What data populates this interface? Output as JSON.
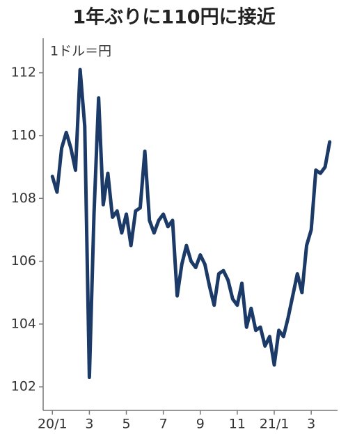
{
  "chart_data": {
    "type": "line",
    "title": "1年ぶりに110円に接近",
    "unit_label": "1ドル＝円",
    "series": [
      {
        "color": "#1c3a68",
        "values": [
          108.7,
          108.2,
          109.6,
          110.1,
          109.6,
          108.9,
          112.1,
          110.3,
          102.3,
          107.5,
          111.2,
          107.8,
          108.8,
          107.4,
          107.6,
          106.9,
          107.5,
          106.5,
          107.6,
          107.7,
          109.5,
          107.3,
          106.9,
          107.3,
          107.5,
          107.1,
          107.3,
          104.9,
          105.9,
          106.5,
          106.0,
          105.8,
          106.2,
          105.9,
          105.2,
          104.6,
          105.6,
          105.7,
          105.4,
          104.8,
          104.6,
          105.3,
          103.9,
          104.5,
          103.8,
          103.9,
          103.3,
          103.6,
          102.7,
          103.8,
          103.6,
          104.2,
          104.9,
          105.6,
          105.0,
          106.5,
          107.0,
          108.9,
          108.8,
          109.0,
          109.8
        ]
      }
    ],
    "xlim": [
      -2,
      61.7
    ],
    "xticks": [
      {
        "value": 0,
        "label": "20/1"
      },
      {
        "value": 8,
        "label": "3"
      },
      {
        "value": 16,
        "label": "5"
      },
      {
        "value": 24,
        "label": "7"
      },
      {
        "value": 32,
        "label": "9"
      },
      {
        "value": 40,
        "label": "11"
      },
      {
        "value": 48,
        "label": "21/1"
      },
      {
        "value": 56,
        "label": "3"
      }
    ],
    "ylim": [
      101.25,
      113.1
    ],
    "yticks": [
      102,
      104,
      106,
      108,
      110,
      112
    ]
  }
}
